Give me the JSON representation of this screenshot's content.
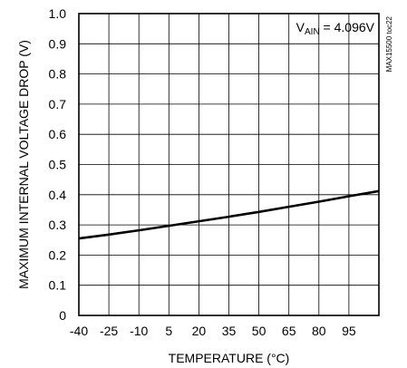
{
  "chart_data": {
    "type": "line",
    "title": "",
    "xlabel": "TEMPERATURE (°C)",
    "ylabel": "MAXIMUM INTERNAL VOLTAGE DROP (V)",
    "x_ticks": [
      "-40",
      "-25",
      "-10",
      "5",
      "20",
      "35",
      "50",
      "65",
      "80",
      "95"
    ],
    "y_ticks": [
      "0",
      "0.1",
      "0.2",
      "0.3",
      "0.4",
      "0.5",
      "0.6",
      "0.7",
      "0.8",
      "0.9",
      "1.0"
    ],
    "xlim": [
      -40,
      110
    ],
    "ylim": [
      0,
      1.0
    ],
    "grid": true,
    "annotation": {
      "prefix": "V",
      "subscript": "AIN",
      "suffix": " = 4.096V"
    },
    "part_number": "MAX15500 toc22",
    "series": [
      {
        "x": [
          -40,
          -25,
          -10,
          5,
          20,
          35,
          50,
          65,
          80,
          95,
          110
        ],
        "y": [
          0.255,
          0.268,
          0.282,
          0.297,
          0.312,
          0.327,
          0.343,
          0.36,
          0.377,
          0.395,
          0.412
        ],
        "color": "#000000"
      }
    ]
  }
}
